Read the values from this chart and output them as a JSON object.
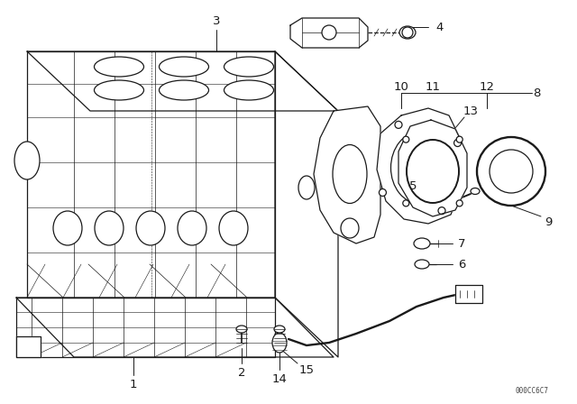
{
  "bg_color": "#ffffff",
  "line_color": "#1a1a1a",
  "fig_width": 6.4,
  "fig_height": 4.48,
  "watermark": "000CC6C7",
  "dpi": 100
}
